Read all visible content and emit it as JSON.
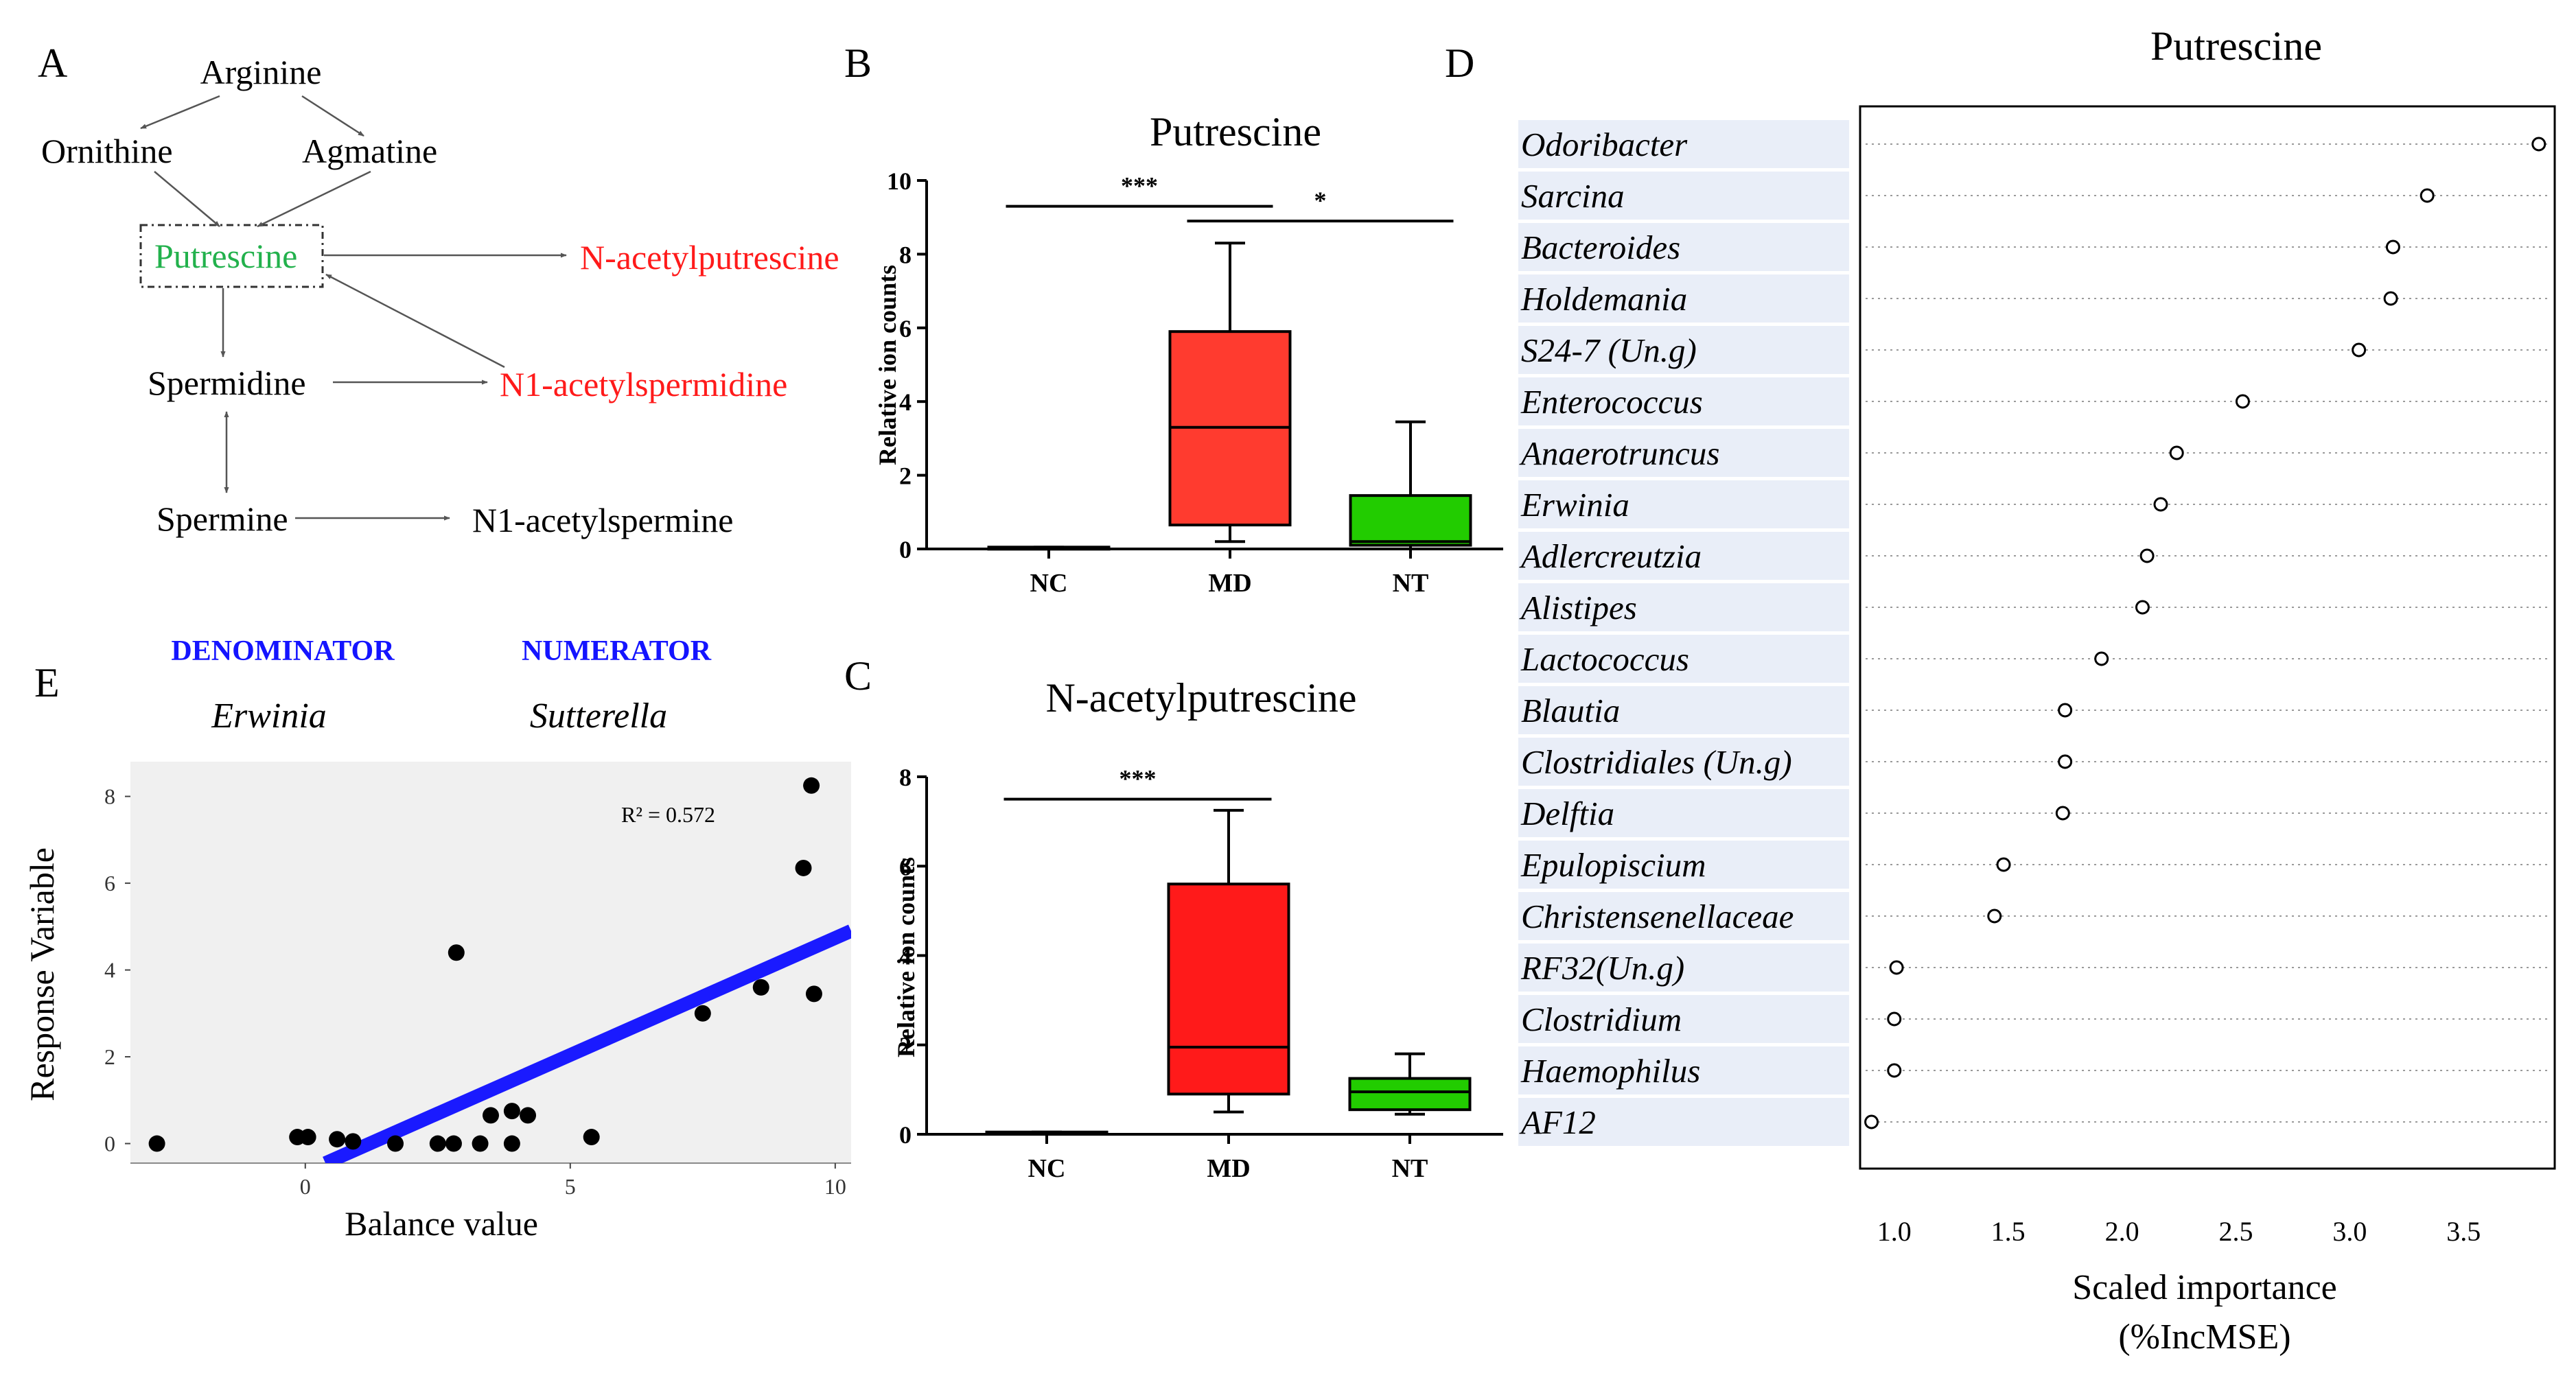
{
  "panels": {
    "A": "A",
    "B": "B",
    "C": "C",
    "D": "D",
    "E": "E"
  },
  "pathway": {
    "nodes": {
      "arginine": "Arginine",
      "ornithine": "Ornithine",
      "agmatine": "Agmatine",
      "putrescine": "Putrescine",
      "n_acetylputrescine": "N-acetylputrescine",
      "spermidine": "Spermidine",
      "n1_acetylspermidine": "N1-acetylspermidine",
      "spermine": "Spermine",
      "n1_acetylspermine": "N1-acetylspermine"
    },
    "colors": {
      "green": "#22b14c",
      "red": "#ff1a1a",
      "black": "#000000"
    }
  },
  "chart_data": [
    {
      "id": "B",
      "type": "box",
      "title": "Putrescine",
      "ylabel": "Relative ion counts",
      "ylim": [
        0,
        10
      ],
      "yticks": [
        "0",
        "2",
        "4",
        "6",
        "8",
        "10"
      ],
      "categories": [
        "NC",
        "MD",
        "NT"
      ],
      "colors": [
        "#ffffff",
        "#ff3b2f",
        "#22cc00"
      ],
      "boxes": [
        {
          "min": 0,
          "q1": 0,
          "median": 0.02,
          "q3": 0.05,
          "max": 0.05
        },
        {
          "min": 0.2,
          "q1": 0.65,
          "median": 3.3,
          "q3": 5.9,
          "max": 8.3
        },
        {
          "min": 0,
          "q1": 0.1,
          "median": 0.2,
          "q3": 1.45,
          "max": 3.45
        }
      ],
      "significance": [
        {
          "from": 0,
          "to": 1,
          "y": 9.3,
          "label": "***"
        },
        {
          "from": 1,
          "to": 2,
          "y": 8.9,
          "label": "*"
        }
      ]
    },
    {
      "id": "C",
      "type": "box",
      "title": "N-acetylputrescine",
      "ylabel": "Relative ion counts",
      "ylim": [
        0,
        8
      ],
      "yticks": [
        "0",
        "2",
        "4",
        "6",
        "8"
      ],
      "categories": [
        "NC",
        "MD",
        "NT"
      ],
      "colors": [
        "#ffffff",
        "#ff1a1a",
        "#22cc00"
      ],
      "boxes": [
        {
          "min": 0,
          "q1": 0,
          "median": 0.02,
          "q3": 0.05,
          "max": 0.05
        },
        {
          "min": 0.5,
          "q1": 0.9,
          "median": 1.95,
          "q3": 5.6,
          "max": 7.25
        },
        {
          "min": 0.45,
          "q1": 0.55,
          "median": 0.95,
          "q3": 1.25,
          "max": 1.8
        }
      ],
      "significance": [
        {
          "from": 0,
          "to": 1,
          "y": 7.5,
          "label": "***"
        }
      ]
    },
    {
      "id": "D",
      "type": "dotplot",
      "title": "Putrescine",
      "xlabel": "Scaled importance",
      "xlabel2": "(%IncMSE)",
      "xlim": [
        0.85,
        3.9
      ],
      "xticks": [
        1.0,
        1.5,
        2.0,
        2.5,
        3.0,
        3.5
      ],
      "xtick_labels": [
        "1.0",
        "1.5",
        "2.0",
        "2.5",
        "3.0",
        "3.5"
      ],
      "labels": [
        "Odoribacter",
        "Sarcina",
        "Bacteroides",
        "Holdemania",
        "S24-7 (Un.g)",
        "Enterococcus",
        "Anaerotruncus",
        "Erwinia",
        "Adlercreutzia",
        "Alistipes",
        "Lactococcus",
        "Blautia",
        "Clostridiales (Un.g)",
        "Delftia",
        "Epulopiscium",
        "Christensenellaceae",
        "RF32(Un.g)",
        "Clostridium",
        "Haemophilus",
        "AF12"
      ],
      "values": [
        3.83,
        3.34,
        3.19,
        3.18,
        3.04,
        2.53,
        2.24,
        2.17,
        2.11,
        2.09,
        1.91,
        1.75,
        1.75,
        1.74,
        1.48,
        1.44,
        1.01,
        1.0,
        1.0,
        0.9
      ],
      "label_bg": "#e9eef8"
    },
    {
      "id": "E",
      "type": "scatter",
      "denominator_label": "DENOMINATOR",
      "numerator_label": "NUMERATOR",
      "denominator": "Erwinia",
      "numerator": "Sutterella",
      "xlabel": "Balance value",
      "ylabel": "Response Variable",
      "r2": "R² = 0.572",
      "xlim": [
        -3.3,
        10.3
      ],
      "ylim": [
        -0.45,
        8.8
      ],
      "xticks": [
        0,
        5,
        10
      ],
      "xtick_labels": [
        "0",
        "5",
        "10"
      ],
      "yticks": [
        0,
        2,
        4,
        6,
        8
      ],
      "ytick_labels": [
        "0",
        "2",
        "4",
        "6",
        "8"
      ],
      "points": [
        [
          -2.8,
          0
        ],
        [
          -0.15,
          0.15
        ],
        [
          0.05,
          0.15
        ],
        [
          0.6,
          0.1
        ],
        [
          0.9,
          0.05
        ],
        [
          1.7,
          0
        ],
        [
          2.5,
          0
        ],
        [
          2.8,
          0
        ],
        [
          3.3,
          0
        ],
        [
          3.5,
          0.65
        ],
        [
          3.9,
          0.75
        ],
        [
          3.9,
          0
        ],
        [
          4.2,
          0.65
        ],
        [
          5.4,
          0.15
        ],
        [
          2.85,
          4.4
        ],
        [
          7.5,
          3
        ],
        [
          8.6,
          3.6
        ],
        [
          9.6,
          3.45
        ],
        [
          9.4,
          6.35
        ],
        [
          9.55,
          8.25
        ]
      ],
      "fit_line": {
        "x0": 0.38,
        "y0": -0.45,
        "x1": 10.3,
        "y1": 4.9
      },
      "colors": {
        "accent": "#1414ff",
        "line": "#1a1aff",
        "point": "#000000",
        "panel_bg": "#f0f0f0"
      }
    }
  ]
}
